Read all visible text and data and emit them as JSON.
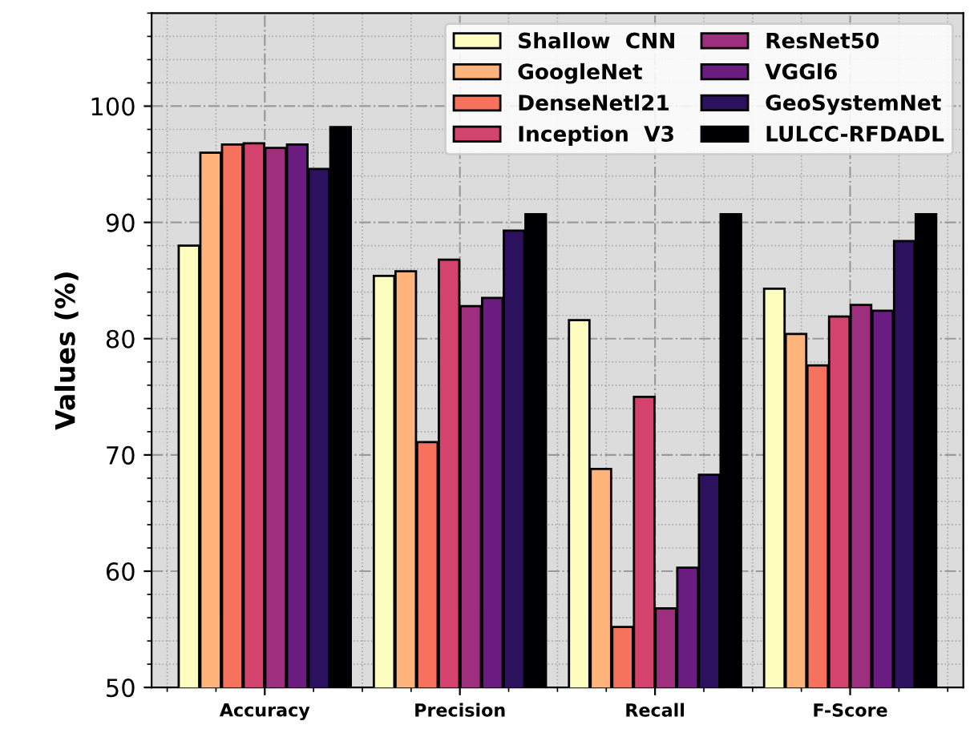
{
  "chart_data": {
    "type": "bar",
    "ylabel": "Values (%)",
    "categories": [
      "Accuracy",
      "Precision",
      "Recall",
      "F-Score"
    ],
    "series": [
      {
        "name": "Shallow  CNN",
        "color": "#fcfdbf",
        "values": [
          88.0,
          85.4,
          81.6,
          84.3
        ]
      },
      {
        "name": "GoogleNet",
        "color": "#feb47b",
        "values": [
          96.0,
          85.8,
          68.8,
          80.4
        ]
      },
      {
        "name": "DenseNetl21",
        "color": "#f7725c",
        "values": [
          96.7,
          71.1,
          55.2,
          77.7
        ]
      },
      {
        "name": "Inception  V3",
        "color": "#d3436e",
        "values": [
          96.8,
          86.8,
          75.0,
          81.9
        ]
      },
      {
        "name": "ResNet50",
        "color": "#9e2f7f",
        "values": [
          96.4,
          82.8,
          56.8,
          82.9
        ]
      },
      {
        "name": "VGGl6",
        "color": "#6a1c81",
        "values": [
          96.7,
          83.5,
          60.3,
          82.4
        ]
      },
      {
        "name": "GeoSystemNet",
        "color": "#2c115f",
        "values": [
          94.6,
          89.3,
          68.3,
          88.4
        ]
      },
      {
        "name": "LULCC-RFDADL",
        "color": "#000004",
        "values": [
          98.2,
          90.7,
          90.7,
          90.7
        ]
      }
    ],
    "ylim": [
      50,
      108
    ],
    "yticks": [
      50,
      60,
      70,
      80,
      90,
      100
    ],
    "grid": true,
    "legend": "top right"
  }
}
